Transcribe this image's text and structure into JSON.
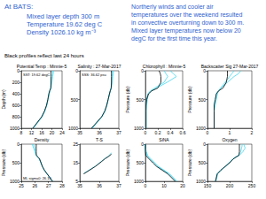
{
  "header": {
    "title": "At BATS:",
    "lines": [
      "Mixed layer depth 300 m",
      "Temperature 19.62 deg C",
      "Density 1026.10 kg m⁻³"
    ],
    "comment": [
      "Northerly winds and cooler air",
      "temperatures over the weekend resulted",
      "in convective overturning down to 300 m.",
      "Mixed layer temperatures now below 20",
      "degC for the first time this year."
    ],
    "note": "Black profiles reflect last 24 hours"
  },
  "chart_data": [
    {
      "type": "line",
      "title": "Potential Temp : Minnie-5",
      "ylabel": "Depth (m)",
      "annotation": "SST: 19.62 degC",
      "xlim": [
        8,
        24
      ],
      "xticks": [
        8,
        12,
        16,
        20,
        24
      ],
      "ylim": [
        0,
        1000
      ],
      "yticks": [
        0,
        200,
        400,
        600,
        800,
        1000
      ],
      "y": [
        0,
        50,
        100,
        200,
        300,
        350,
        400,
        500,
        600,
        700,
        800,
        1000
      ],
      "series": [
        {
          "color": "#40d8f0",
          "values": [
            20.6,
            20.5,
            20.3,
            20.0,
            19.7,
            19.3,
            19.0,
            18.5,
            18.0,
            17.3,
            16.2,
            12.8
          ]
        },
        {
          "color": "#40d8f0",
          "values": [
            20.3,
            20.2,
            20.0,
            19.8,
            19.5,
            19.2,
            18.9,
            18.5,
            18.0,
            17.2,
            16.1,
            12.6
          ]
        },
        {
          "color": "#000000",
          "values": [
            19.62,
            19.62,
            19.62,
            19.62,
            19.6,
            19.1,
            18.8,
            18.4,
            17.9,
            17.1,
            16.0,
            12.5
          ]
        }
      ]
    },
    {
      "type": "line",
      "title": "Salinity : 27-Mar-2017",
      "annotation": "SSS: 36.62 psu",
      "xlim": [
        35,
        37
      ],
      "xticks": [
        35,
        36,
        37
      ],
      "ylim": [
        0,
        1000
      ],
      "yticks": [
        0,
        500,
        1000
      ],
      "y": [
        0,
        50,
        100,
        200,
        300,
        350,
        400,
        500,
        600,
        700,
        800,
        1000
      ],
      "series": [
        {
          "color": "#40d8f0",
          "values": [
            36.72,
            36.71,
            36.69,
            36.66,
            36.62,
            36.57,
            36.53,
            36.46,
            36.39,
            36.3,
            36.14,
            35.65
          ]
        },
        {
          "color": "#40d8f0",
          "values": [
            36.68,
            36.67,
            36.66,
            36.64,
            36.6,
            36.56,
            36.52,
            36.46,
            36.38,
            36.29,
            36.13,
            35.62
          ]
        },
        {
          "color": "#000000",
          "values": [
            36.62,
            36.62,
            36.62,
            36.62,
            36.61,
            36.56,
            36.52,
            36.45,
            36.38,
            36.28,
            36.12,
            35.6
          ]
        }
      ]
    },
    {
      "type": "line",
      "title": "Chlorophyll : Minnie-5",
      "ylabel": "Pressure (db)",
      "xlim": [
        0,
        0.6
      ],
      "xticks": [
        0,
        0.2,
        0.4,
        0.6
      ],
      "ylim": [
        0,
        1000
      ],
      "yticks": [
        0,
        500,
        1000
      ],
      "y": [
        0,
        50,
        100,
        200,
        300,
        350,
        400,
        500,
        600,
        700,
        800,
        1000
      ],
      "series": [
        {
          "color": "#40d8f0",
          "values": [
            0.4,
            0.45,
            0.5,
            0.35,
            0.18,
            0.1,
            0.05,
            0.03,
            0.02,
            0.01,
            0.01,
            0.01
          ]
        },
        {
          "color": "#40d8f0",
          "values": [
            0.3,
            0.33,
            0.36,
            0.3,
            0.15,
            0.08,
            0.04,
            0.02,
            0.01,
            0.01,
            0.01,
            0.01
          ]
        },
        {
          "color": "#000000",
          "values": [
            0.22,
            0.24,
            0.25,
            0.25,
            0.2,
            0.1,
            0.05,
            0.02,
            0.01,
            0.01,
            0.01,
            0.01
          ]
        }
      ]
    },
    {
      "type": "line",
      "title": "Backscatter Sig 27-Mar-2017",
      "ylabel": "Pressure (db)",
      "xlim": [
        0,
        2
      ],
      "xticks": [
        0,
        1,
        2
      ],
      "ylim": [
        0,
        1000
      ],
      "yticks": [
        0,
        500,
        1000
      ],
      "y": [
        0,
        50,
        100,
        200,
        300,
        350,
        400,
        500,
        600,
        700,
        800,
        1000
      ],
      "series": [
        {
          "color": "#40d8f0",
          "values": [
            1.5,
            1.4,
            1.2,
            0.9,
            0.6,
            0.5,
            0.45,
            0.4,
            0.35,
            0.3,
            0.3,
            0.3
          ]
        },
        {
          "color": "#40d8f0",
          "values": [
            1.2,
            1.1,
            1.0,
            0.8,
            0.6,
            0.5,
            0.4,
            0.35,
            0.3,
            0.3,
            0.3,
            0.3
          ]
        },
        {
          "color": "#000000",
          "values": [
            0.9,
            0.9,
            0.9,
            0.85,
            0.7,
            0.5,
            0.4,
            0.35,
            0.3,
            0.3,
            0.3,
            0.3
          ]
        }
      ]
    },
    {
      "type": "line",
      "title": "Density",
      "ylabel": "Pressure (db)",
      "annotation": "ML sigma0: 26.10",
      "xlim": [
        25,
        28
      ],
      "xticks": [
        25,
        26,
        27,
        28
      ],
      "ylim": [
        0,
        1000
      ],
      "yticks": [
        0,
        500,
        1000
      ],
      "y": [
        0,
        50,
        100,
        200,
        300,
        350,
        400,
        500,
        600,
        700,
        800,
        1000
      ],
      "series": [
        {
          "color": "#40d8f0",
          "values": [
            25.8,
            25.85,
            25.9,
            26.0,
            26.08,
            26.2,
            26.32,
            26.44,
            26.55,
            26.7,
            26.9,
            27.3
          ]
        },
        {
          "color": "#40d8f0",
          "values": [
            25.9,
            25.95,
            26.0,
            26.05,
            26.1,
            26.22,
            26.33,
            26.45,
            26.55,
            26.7,
            26.9,
            27.3
          ]
        },
        {
          "color": "#000000",
          "values": [
            26.1,
            26.1,
            26.1,
            26.1,
            26.11,
            26.25,
            26.35,
            26.45,
            26.55,
            26.7,
            26.9,
            27.3
          ]
        }
      ]
    },
    {
      "type": "line",
      "title": "T-S",
      "xlim": [
        35,
        37
      ],
      "xticks": [
        35,
        36,
        37
      ],
      "ylim": [
        5,
        25
      ],
      "yticks": [
        5,
        15,
        25
      ],
      "x": [
        35.2,
        35.5,
        35.8,
        36.1,
        36.3,
        36.45,
        36.55,
        36.62
      ],
      "series": [
        {
          "color": "#40d8f0",
          "values": [
            9.2,
            11.2,
            13.2,
            15.7,
            17.4,
            18.4,
            19.4,
            20.4
          ]
        },
        {
          "color": "#000000",
          "values": [
            9,
            11,
            13,
            15.5,
            17.2,
            18.2,
            19.0,
            19.62
          ]
        }
      ]
    },
    {
      "type": "line",
      "title": "SiNA",
      "ylabel": "Pressure (db)",
      "xlim": [
        0,
        20
      ],
      "xticks": [
        0,
        10,
        20
      ],
      "ylim": [
        0,
        1000
      ],
      "yticks": [
        0,
        500,
        1000
      ],
      "y": [
        0,
        50,
        100,
        200,
        300,
        350,
        400,
        500,
        600,
        700,
        800,
        1000
      ],
      "series": [
        {
          "color": "#40d8f0",
          "values": [
            0,
            0,
            0,
            0.5,
            1.2,
            2,
            3,
            5,
            7,
            10,
            13,
            17
          ]
        },
        {
          "color": "#40d8f0",
          "values": [
            0,
            0,
            0,
            0.2,
            0.8,
            1.5,
            2.5,
            4.5,
            6.5,
            9.5,
            12.5,
            16.5
          ]
        },
        {
          "color": "#000000",
          "values": [
            0,
            0,
            0,
            0,
            0.2,
            1,
            2,
            4,
            6,
            9,
            12,
            16
          ]
        }
      ]
    },
    {
      "type": "line",
      "title": "Oxygen",
      "ylabel": "Pressure (db)",
      "xlim": [
        150,
        250
      ],
      "xticks": [
        150,
        200,
        250
      ],
      "ylim": [
        0,
        1000
      ],
      "yticks": [
        0,
        500,
        1000
      ],
      "y": [
        0,
        50,
        100,
        200,
        300,
        350,
        400,
        500,
        600,
        700,
        800,
        1000
      ],
      "series": [
        {
          "color": "#40d8f0",
          "values": [
            232,
            233,
            235,
            230,
            222,
            214,
            208,
            200,
            191,
            181,
            173,
            169
          ]
        },
        {
          "color": "#40d8f0",
          "values": [
            228,
            228,
            227,
            225,
            220,
            213,
            207,
            199,
            190,
            180,
            172,
            168
          ]
        },
        {
          "color": "#000000",
          "values": [
            222,
            222,
            222,
            222,
            221,
            214,
            208,
            200,
            190,
            180,
            172,
            168
          ]
        }
      ]
    }
  ]
}
